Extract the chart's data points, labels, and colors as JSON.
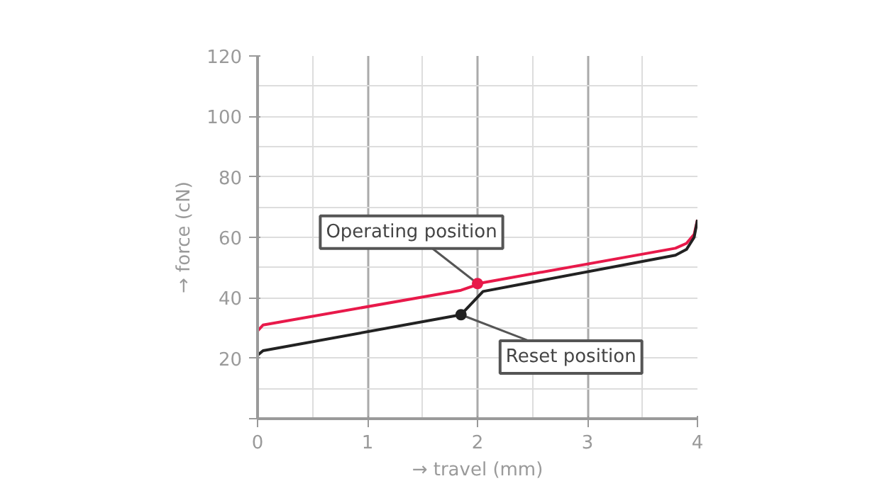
{
  "chart_data": {
    "type": "line",
    "xlabel": "→ travel (mm)",
    "ylabel": "→ force (cN)",
    "x": [
      0,
      0.05,
      1.85,
      2.05,
      3.8,
      3.9,
      3.97,
      4
    ],
    "series": [
      {
        "color": "#e8194a",
        "values": [
          29,
          31,
          42.5,
          45,
          56.4,
          58,
          61,
          65.8
        ]
      },
      {
        "color": "#222222",
        "values": [
          21,
          22.5,
          34.4,
          42.1,
          54.1,
          56,
          60,
          65.8
        ]
      }
    ],
    "xlim": [
      0,
      4
    ],
    "ylim": [
      0,
      120
    ],
    "xticks": [
      0,
      1,
      2,
      3,
      4
    ],
    "yticks": [
      {
        "value": 0,
        "label": null
      },
      20,
      40,
      60,
      80,
      100,
      120
    ],
    "grid": true,
    "marker": "none",
    "line_style": "solid",
    "annotations": [
      {
        "text": "Operating position",
        "x": 2,
        "y": 44.7
      },
      {
        "text": "Reset position",
        "x": 1.85,
        "y": 34.4
      }
    ]
  }
}
